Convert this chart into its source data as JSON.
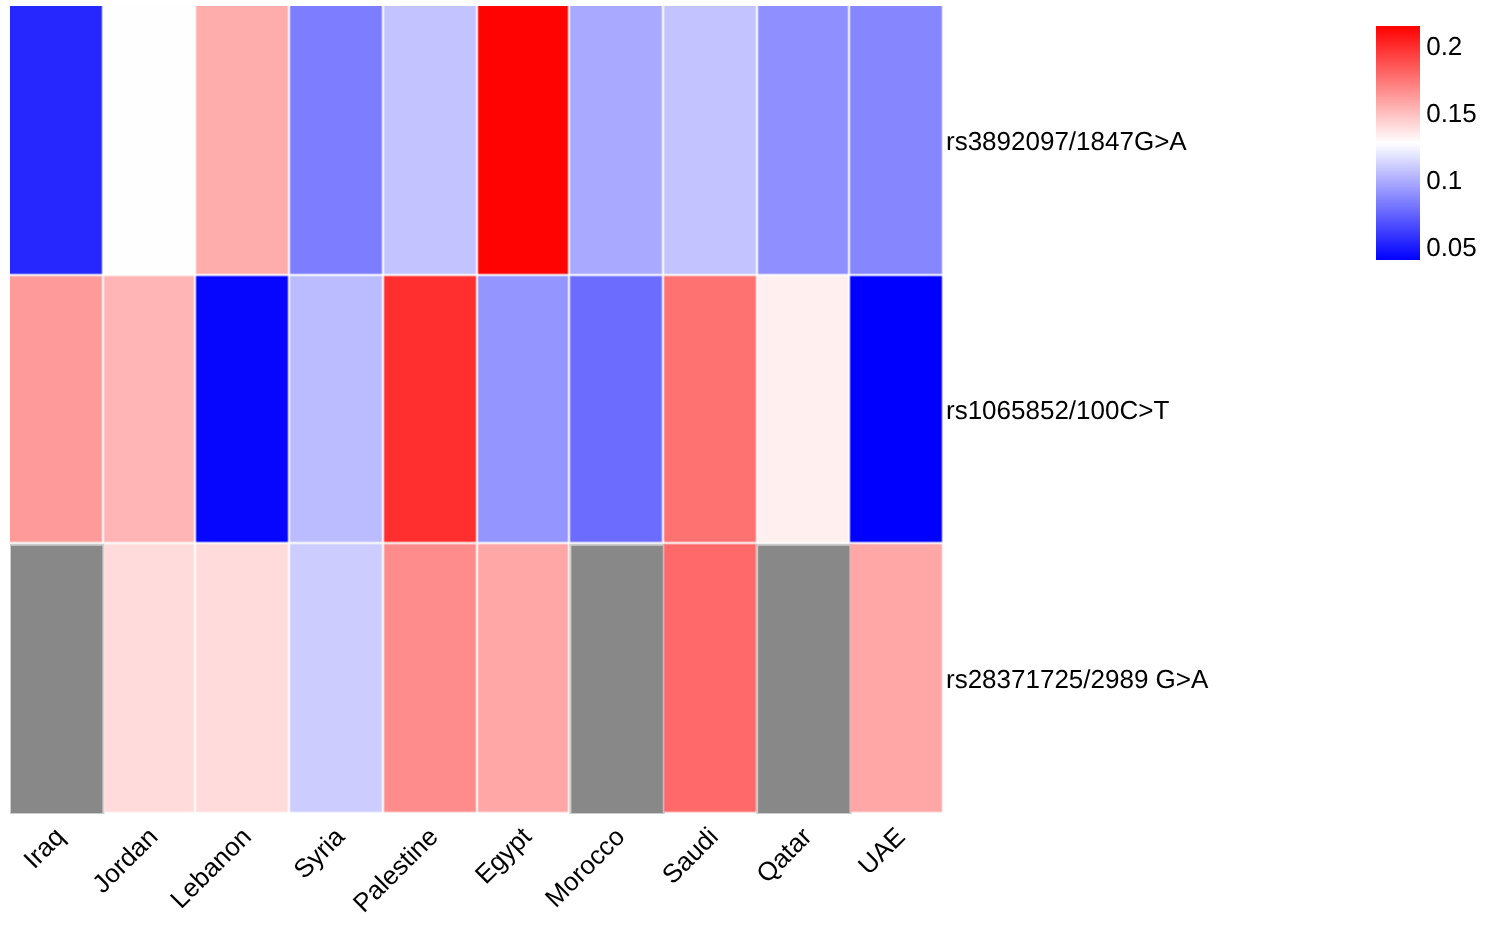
{
  "chart_data": {
    "type": "heatmap",
    "categories": [
      "Iraq",
      "Jordan",
      "Lebanon",
      "Syria",
      "Palestine",
      "Egypt",
      "Morocco",
      "Saudi",
      "Qatar",
      "UAE"
    ],
    "y_categories": [
      "rs3892097/1847G>A",
      "rs1065852/100C>T",
      "rs28371725/2989 G>A"
    ],
    "cells": [
      [
        0.053,
        0.127,
        0.156,
        0.083,
        0.107,
        0.214,
        0.098,
        0.107,
        0.089,
        0.086
      ],
      [
        0.162,
        0.153,
        0.042,
        0.104,
        0.199,
        0.091,
        0.077,
        0.176,
        0.133,
        0.04
      ],
      [
        null,
        0.14,
        0.14,
        0.11,
        0.167,
        0.158,
        null,
        0.179,
        null,
        0.158
      ]
    ],
    "clim": [
      0.04,
      0.215
    ],
    "cticks": [
      0.05,
      0.1,
      0.15,
      0.2
    ]
  }
}
